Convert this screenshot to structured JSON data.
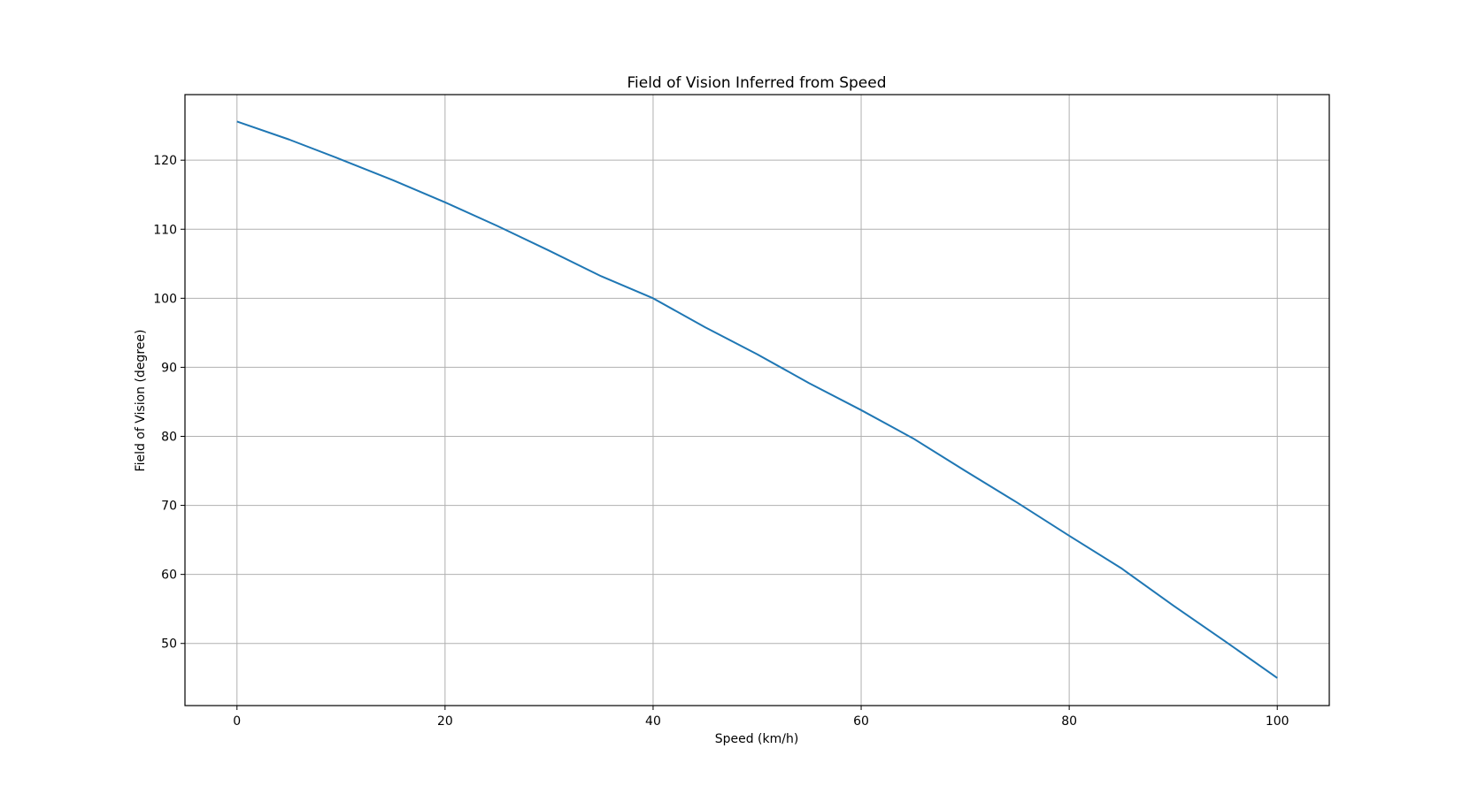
{
  "chart_data": {
    "type": "line",
    "title": "Field of Vision Inferred from Speed",
    "xlabel": "Speed (km/h)",
    "ylabel": "Field of Vision (degree)",
    "xlim": [
      -5,
      105
    ],
    "ylim": [
      41,
      129.5
    ],
    "xticks": [
      0,
      20,
      40,
      60,
      80,
      100
    ],
    "yticks": [
      50,
      60,
      70,
      80,
      90,
      100,
      110,
      120
    ],
    "grid": true,
    "line_color": "#1f77b4",
    "series": [
      {
        "x": [
          0,
          5,
          10,
          15,
          20,
          25,
          30,
          35,
          40,
          45,
          50,
          55,
          60,
          65,
          70,
          75,
          80,
          85,
          90,
          95,
          100
        ],
        "y": [
          125.6,
          123.0,
          120.1,
          117.1,
          113.9,
          110.5,
          106.9,
          103.2,
          100.0,
          95.8,
          91.9,
          87.7,
          83.8,
          79.7,
          75.0,
          70.4,
          65.6,
          60.9,
          55.5,
          50.3,
          45.0
        ]
      }
    ]
  }
}
